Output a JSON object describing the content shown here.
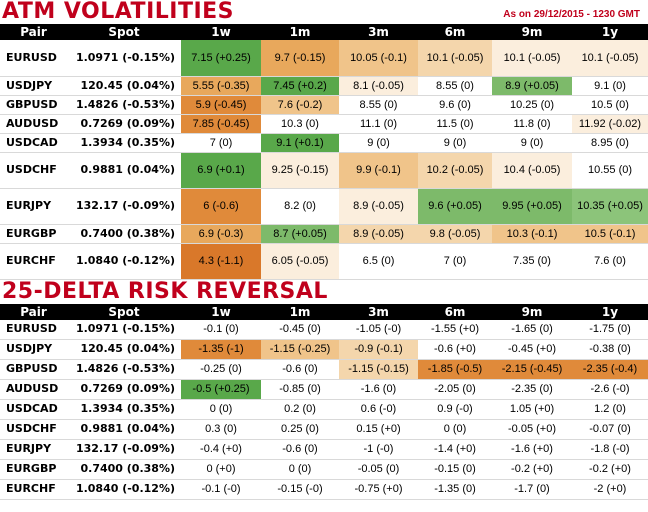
{
  "atm": {
    "title": "ATM VOLATILITIES",
    "as_of": "As on 29/12/2015 - 1230 GMT",
    "headers": [
      "Pair",
      "Spot",
      "1w",
      "1m",
      "3m",
      "6m",
      "9m",
      "1y"
    ],
    "rows": [
      {
        "pair": "EURUSD",
        "spot": "1.0971 (-0.15%)",
        "cells": [
          {
            "v": "7.15 (+0.25)",
            "c": "#59a84a"
          },
          {
            "v": "9.7 (-0.15)",
            "c": "#e8a85c"
          },
          {
            "v": "10.05 (-0.1)",
            "c": "#f0c48a"
          },
          {
            "v": "10.1 (-0.05)",
            "c": "#f4d6ac"
          },
          {
            "v": "10.1 (-0.05)",
            "c": "#fbeedd"
          },
          {
            "v": "10.1 (-0.05)",
            "c": "#fbeedd"
          }
        ]
      },
      {
        "pair": "USDJPY",
        "spot": "120.45 (0.04%)",
        "cells": [
          {
            "v": "5.55 (-0.35)",
            "c": "#e8a85c"
          },
          {
            "v": "7.45 (+0.2)",
            "c": "#59a84a"
          },
          {
            "v": "8.1 (-0.05)",
            "c": "#fbeedd"
          },
          {
            "v": "8.55 (0)",
            "c": "#ffffff"
          },
          {
            "v": "8.9 (+0.05)",
            "c": "#7dba6a"
          },
          {
            "v": "9.1 (0)",
            "c": "#ffffff"
          }
        ]
      },
      {
        "pair": "GBPUSD",
        "spot": "1.4826 (-0.53%)",
        "cells": [
          {
            "v": "5.9 (-0.45)",
            "c": "#e08a3a"
          },
          {
            "v": "7.6 (-0.2)",
            "c": "#f0c48a"
          },
          {
            "v": "8.55 (0)",
            "c": "#ffffff"
          },
          {
            "v": "9.6 (0)",
            "c": "#ffffff"
          },
          {
            "v": "10.25 (0)",
            "c": "#ffffff"
          },
          {
            "v": "10.5 (0)",
            "c": "#ffffff"
          }
        ]
      },
      {
        "pair": "AUDUSD",
        "spot": "0.7269 (0.09%)",
        "cells": [
          {
            "v": "7.85 (-0.45)",
            "c": "#e08a3a"
          },
          {
            "v": "10.3 (0)",
            "c": "#ffffff"
          },
          {
            "v": "11.1 (0)",
            "c": "#ffffff"
          },
          {
            "v": "11.5 (0)",
            "c": "#ffffff"
          },
          {
            "v": "11.8 (0)",
            "c": "#ffffff"
          },
          {
            "v": "11.92 (-0.02)",
            "c": "#fbeedd"
          }
        ]
      },
      {
        "pair": "USDCAD",
        "spot": "1.3934 (0.35%)",
        "cells": [
          {
            "v": "7 (0)",
            "c": "#ffffff"
          },
          {
            "v": "9.1 (+0.1)",
            "c": "#59a84a"
          },
          {
            "v": "9 (0)",
            "c": "#ffffff"
          },
          {
            "v": "9 (0)",
            "c": "#ffffff"
          },
          {
            "v": "9 (0)",
            "c": "#ffffff"
          },
          {
            "v": "8.95 (0)",
            "c": "#ffffff"
          }
        ]
      },
      {
        "pair": "USDCHF",
        "spot": "0.9881 (0.04%)",
        "cells": [
          {
            "v": "6.9 (+0.1)",
            "c": "#59a84a"
          },
          {
            "v": "9.25 (-0.15)",
            "c": "#fbeedd"
          },
          {
            "v": "9.9 (-0.1)",
            "c": "#f0c48a"
          },
          {
            "v": "10.2 (-0.05)",
            "c": "#f4d6ac"
          },
          {
            "v": "10.4 (-0.05)",
            "c": "#fbeedd"
          },
          {
            "v": "10.55 (0)",
            "c": "#ffffff"
          }
        ]
      },
      {
        "pair": "EURJPY",
        "spot": "132.17 (-0.09%)",
        "cells": [
          {
            "v": "6 (-0.6)",
            "c": "#e08a3a"
          },
          {
            "v": "8.2 (0)",
            "c": "#ffffff"
          },
          {
            "v": "8.9 (-0.05)",
            "c": "#fbeedd"
          },
          {
            "v": "9.6 (+0.05)",
            "c": "#7dba6a"
          },
          {
            "v": "9.95 (+0.05)",
            "c": "#7dba6a"
          },
          {
            "v": "10.35 (+0.05)",
            "c": "#8cc47a"
          }
        ]
      },
      {
        "pair": "EURGBP",
        "spot": "0.7400 (0.38%)",
        "cells": [
          {
            "v": "6.9 (-0.3)",
            "c": "#e8a85c"
          },
          {
            "v": "8.7 (+0.05)",
            "c": "#7dba6a"
          },
          {
            "v": "8.9 (-0.05)",
            "c": "#f4d6ac"
          },
          {
            "v": "9.8 (-0.05)",
            "c": "#f4d6ac"
          },
          {
            "v": "10.3 (-0.1)",
            "c": "#f0c48a"
          },
          {
            "v": "10.5 (-0.1)",
            "c": "#f0c48a"
          }
        ]
      },
      {
        "pair": "EURCHF",
        "spot": "1.0840 (-0.12%)",
        "cells": [
          {
            "v": "4.3 (-1.1)",
            "c": "#d9782a"
          },
          {
            "v": "6.05 (-0.05)",
            "c": "#fbeedd"
          },
          {
            "v": "6.5 (0)",
            "c": "#ffffff"
          },
          {
            "v": "7 (0)",
            "c": "#ffffff"
          },
          {
            "v": "7.35 (0)",
            "c": "#ffffff"
          },
          {
            "v": "7.6 (0)",
            "c": "#ffffff"
          }
        ]
      }
    ]
  },
  "rr": {
    "title": "25-DELTA RISK REVERSAL",
    "headers": [
      "Pair",
      "Spot",
      "1w",
      "1m",
      "3m",
      "6m",
      "9m",
      "1y"
    ],
    "rows": [
      {
        "pair": "EURUSD",
        "spot": "1.0971 (-0.15%)",
        "cells": [
          {
            "v": "-0.1 (0)",
            "c": "#ffffff"
          },
          {
            "v": "-0.45 (0)",
            "c": "#ffffff"
          },
          {
            "v": "-1.05 (-0)",
            "c": "#ffffff"
          },
          {
            "v": "-1.55 (+0)",
            "c": "#ffffff"
          },
          {
            "v": "-1.65 (0)",
            "c": "#ffffff"
          },
          {
            "v": "-1.75 (0)",
            "c": "#ffffff"
          }
        ]
      },
      {
        "pair": "USDJPY",
        "spot": "120.45 (0.04%)",
        "cells": [
          {
            "v": "-1.35 (-1)",
            "c": "#e08a3a"
          },
          {
            "v": "-1.15 (-0.25)",
            "c": "#f0c48a"
          },
          {
            "v": "-0.9 (-0.1)",
            "c": "#f4d6ac"
          },
          {
            "v": "-0.6 (+0)",
            "c": "#ffffff"
          },
          {
            "v": "-0.45 (+0)",
            "c": "#ffffff"
          },
          {
            "v": "-0.38 (0)",
            "c": "#ffffff"
          }
        ]
      },
      {
        "pair": "GBPUSD",
        "spot": "1.4826 (-0.53%)",
        "cells": [
          {
            "v": "-0.25 (0)",
            "c": "#ffffff"
          },
          {
            "v": "-0.6 (0)",
            "c": "#ffffff"
          },
          {
            "v": "-1.15 (-0.15)",
            "c": "#f4d6ac"
          },
          {
            "v": "-1.85 (-0.5)",
            "c": "#e08a3a"
          },
          {
            "v": "-2.15 (-0.45)",
            "c": "#e08a3a"
          },
          {
            "v": "-2.35 (-0.4)",
            "c": "#e08a3a"
          }
        ]
      },
      {
        "pair": "AUDUSD",
        "spot": "0.7269 (0.09%)",
        "cells": [
          {
            "v": "-0.5 (+0.25)",
            "c": "#59a84a"
          },
          {
            "v": "-0.85 (0)",
            "c": "#ffffff"
          },
          {
            "v": "-1.6 (0)",
            "c": "#ffffff"
          },
          {
            "v": "-2.05 (0)",
            "c": "#ffffff"
          },
          {
            "v": "-2.35 (0)",
            "c": "#ffffff"
          },
          {
            "v": "-2.6 (-0)",
            "c": "#ffffff"
          }
        ]
      },
      {
        "pair": "USDCAD",
        "spot": "1.3934 (0.35%)",
        "cells": [
          {
            "v": "0 (0)",
            "c": "#ffffff"
          },
          {
            "v": "0.2 (0)",
            "c": "#ffffff"
          },
          {
            "v": "0.6 (-0)",
            "c": "#ffffff"
          },
          {
            "v": "0.9 (-0)",
            "c": "#ffffff"
          },
          {
            "v": "1.05 (+0)",
            "c": "#ffffff"
          },
          {
            "v": "1.2 (0)",
            "c": "#ffffff"
          }
        ]
      },
      {
        "pair": "USDCHF",
        "spot": "0.9881 (0.04%)",
        "cells": [
          {
            "v": "0.3 (0)",
            "c": "#ffffff"
          },
          {
            "v": "0.25 (0)",
            "c": "#ffffff"
          },
          {
            "v": "0.15 (+0)",
            "c": "#ffffff"
          },
          {
            "v": "0 (0)",
            "c": "#ffffff"
          },
          {
            "v": "-0.05 (+0)",
            "c": "#ffffff"
          },
          {
            "v": "-0.07 (0)",
            "c": "#ffffff"
          }
        ]
      },
      {
        "pair": "EURJPY",
        "spot": "132.17 (-0.09%)",
        "cells": [
          {
            "v": "-0.4 (+0)",
            "c": "#ffffff"
          },
          {
            "v": "-0.6 (0)",
            "c": "#ffffff"
          },
          {
            "v": "-1 (-0)",
            "c": "#ffffff"
          },
          {
            "v": "-1.4 (+0)",
            "c": "#ffffff"
          },
          {
            "v": "-1.6 (+0)",
            "c": "#ffffff"
          },
          {
            "v": "-1.8 (-0)",
            "c": "#ffffff"
          }
        ]
      },
      {
        "pair": "EURGBP",
        "spot": "0.7400 (0.38%)",
        "cells": [
          {
            "v": "0 (+0)",
            "c": "#ffffff"
          },
          {
            "v": "0 (0)",
            "c": "#ffffff"
          },
          {
            "v": "-0.05 (0)",
            "c": "#ffffff"
          },
          {
            "v": "-0.15 (0)",
            "c": "#ffffff"
          },
          {
            "v": "-0.2 (+0)",
            "c": "#ffffff"
          },
          {
            "v": "-0.2 (+0)",
            "c": "#ffffff"
          }
        ]
      },
      {
        "pair": "EURCHF",
        "spot": "1.0840 (-0.12%)",
        "cells": [
          {
            "v": "-0.1 (-0)",
            "c": "#ffffff"
          },
          {
            "v": "-0.15 (-0)",
            "c": "#ffffff"
          },
          {
            "v": "-0.75 (+0)",
            "c": "#ffffff"
          },
          {
            "v": "-1.35 (0)",
            "c": "#ffffff"
          },
          {
            "v": "-1.7 (0)",
            "c": "#ffffff"
          },
          {
            "v": "-2 (+0)",
            "c": "#ffffff"
          }
        ]
      }
    ]
  }
}
